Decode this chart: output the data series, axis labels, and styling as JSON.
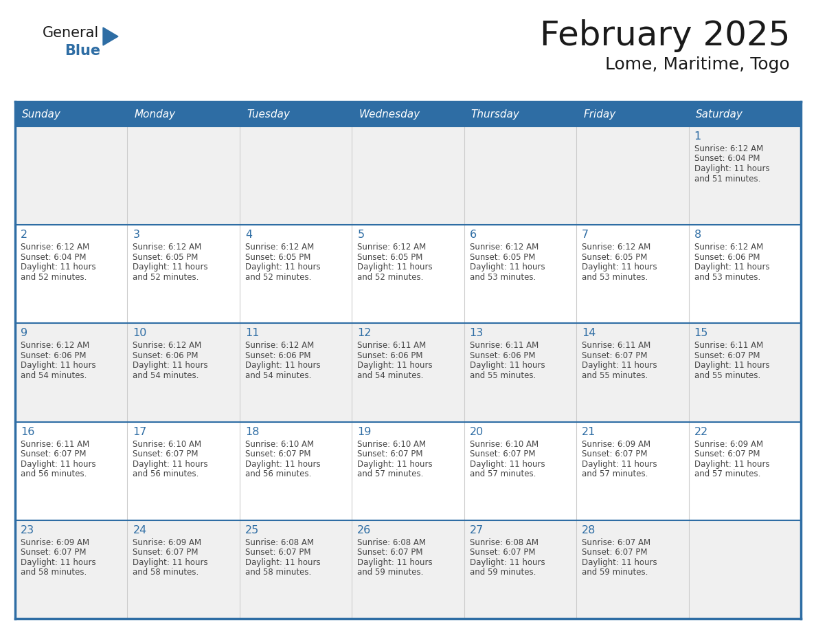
{
  "title": "February 2025",
  "subtitle": "Lome, Maritime, Togo",
  "header_bg": "#2E6DA4",
  "header_text_color": "#FFFFFF",
  "day_names": [
    "Sunday",
    "Monday",
    "Tuesday",
    "Wednesday",
    "Thursday",
    "Friday",
    "Saturday"
  ],
  "bg_color": "#FFFFFF",
  "row_bg": [
    "#F0F0F0",
    "#FFFFFF",
    "#F0F0F0",
    "#FFFFFF",
    "#F0F0F0"
  ],
  "border_color": "#2E6DA4",
  "grid_color": "#AAAAAA",
  "day_num_color": "#2E6DA4",
  "text_color": "#444444",
  "calendar": [
    [
      null,
      null,
      null,
      null,
      null,
      null,
      {
        "day": 1,
        "sunrise": "6:12 AM",
        "sunset": "6:04 PM",
        "daylight": "11 hours and 51 minutes."
      }
    ],
    [
      {
        "day": 2,
        "sunrise": "6:12 AM",
        "sunset": "6:04 PM",
        "daylight": "11 hours and 52 minutes."
      },
      {
        "day": 3,
        "sunrise": "6:12 AM",
        "sunset": "6:05 PM",
        "daylight": "11 hours and 52 minutes."
      },
      {
        "day": 4,
        "sunrise": "6:12 AM",
        "sunset": "6:05 PM",
        "daylight": "11 hours and 52 minutes."
      },
      {
        "day": 5,
        "sunrise": "6:12 AM",
        "sunset": "6:05 PM",
        "daylight": "11 hours and 52 minutes."
      },
      {
        "day": 6,
        "sunrise": "6:12 AM",
        "sunset": "6:05 PM",
        "daylight": "11 hours and 53 minutes."
      },
      {
        "day": 7,
        "sunrise": "6:12 AM",
        "sunset": "6:05 PM",
        "daylight": "11 hours and 53 minutes."
      },
      {
        "day": 8,
        "sunrise": "6:12 AM",
        "sunset": "6:06 PM",
        "daylight": "11 hours and 53 minutes."
      }
    ],
    [
      {
        "day": 9,
        "sunrise": "6:12 AM",
        "sunset": "6:06 PM",
        "daylight": "11 hours and 54 minutes."
      },
      {
        "day": 10,
        "sunrise": "6:12 AM",
        "sunset": "6:06 PM",
        "daylight": "11 hours and 54 minutes."
      },
      {
        "day": 11,
        "sunrise": "6:12 AM",
        "sunset": "6:06 PM",
        "daylight": "11 hours and 54 minutes."
      },
      {
        "day": 12,
        "sunrise": "6:11 AM",
        "sunset": "6:06 PM",
        "daylight": "11 hours and 54 minutes."
      },
      {
        "day": 13,
        "sunrise": "6:11 AM",
        "sunset": "6:06 PM",
        "daylight": "11 hours and 55 minutes."
      },
      {
        "day": 14,
        "sunrise": "6:11 AM",
        "sunset": "6:07 PM",
        "daylight": "11 hours and 55 minutes."
      },
      {
        "day": 15,
        "sunrise": "6:11 AM",
        "sunset": "6:07 PM",
        "daylight": "11 hours and 55 minutes."
      }
    ],
    [
      {
        "day": 16,
        "sunrise": "6:11 AM",
        "sunset": "6:07 PM",
        "daylight": "11 hours and 56 minutes."
      },
      {
        "day": 17,
        "sunrise": "6:10 AM",
        "sunset": "6:07 PM",
        "daylight": "11 hours and 56 minutes."
      },
      {
        "day": 18,
        "sunrise": "6:10 AM",
        "sunset": "6:07 PM",
        "daylight": "11 hours and 56 minutes."
      },
      {
        "day": 19,
        "sunrise": "6:10 AM",
        "sunset": "6:07 PM",
        "daylight": "11 hours and 57 minutes."
      },
      {
        "day": 20,
        "sunrise": "6:10 AM",
        "sunset": "6:07 PM",
        "daylight": "11 hours and 57 minutes."
      },
      {
        "day": 21,
        "sunrise": "6:09 AM",
        "sunset": "6:07 PM",
        "daylight": "11 hours and 57 minutes."
      },
      {
        "day": 22,
        "sunrise": "6:09 AM",
        "sunset": "6:07 PM",
        "daylight": "11 hours and 57 minutes."
      }
    ],
    [
      {
        "day": 23,
        "sunrise": "6:09 AM",
        "sunset": "6:07 PM",
        "daylight": "11 hours and 58 minutes."
      },
      {
        "day": 24,
        "sunrise": "6:09 AM",
        "sunset": "6:07 PM",
        "daylight": "11 hours and 58 minutes."
      },
      {
        "day": 25,
        "sunrise": "6:08 AM",
        "sunset": "6:07 PM",
        "daylight": "11 hours and 58 minutes."
      },
      {
        "day": 26,
        "sunrise": "6:08 AM",
        "sunset": "6:07 PM",
        "daylight": "11 hours and 59 minutes."
      },
      {
        "day": 27,
        "sunrise": "6:08 AM",
        "sunset": "6:07 PM",
        "daylight": "11 hours and 59 minutes."
      },
      {
        "day": 28,
        "sunrise": "6:07 AM",
        "sunset": "6:07 PM",
        "daylight": "11 hours and 59 minutes."
      },
      null
    ]
  ]
}
